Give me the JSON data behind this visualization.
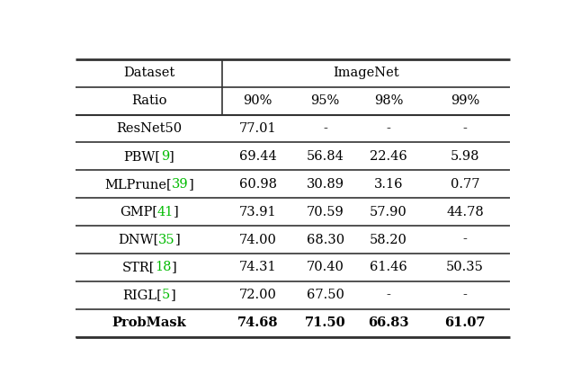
{
  "col_headers": [
    "Dataset",
    "ImageNet"
  ],
  "sub_headers": [
    "Ratio",
    "90%",
    "95%",
    "98%",
    "99%"
  ],
  "rows": [
    {
      "label": "ResNet50",
      "cite": "",
      "cite_num": "",
      "values": [
        "77.01",
        "-",
        "-",
        "-"
      ],
      "bold": false
    },
    {
      "label": "PBW",
      "cite": "[",
      "cite_num": "9",
      "values": [
        "69.44",
        "56.84",
        "22.46",
        "5.98"
      ],
      "bold": false
    },
    {
      "label": "MLPrune",
      "cite": "[",
      "cite_num": "39",
      "values": [
        "60.98",
        "30.89",
        "3.16",
        "0.77"
      ],
      "bold": false
    },
    {
      "label": "GMP",
      "cite": "[",
      "cite_num": "41",
      "values": [
        "73.91",
        "70.59",
        "57.90",
        "44.78"
      ],
      "bold": false
    },
    {
      "label": "DNW",
      "cite": "[",
      "cite_num": "35",
      "values": [
        "74.00",
        "68.30",
        "58.20",
        "-"
      ],
      "bold": false
    },
    {
      "label": "STR",
      "cite": "[",
      "cite_num": "18",
      "values": [
        "74.31",
        "70.40",
        "61.46",
        "50.35"
      ],
      "bold": false
    },
    {
      "label": "RIGL",
      "cite": "[",
      "cite_num": "5",
      "values": [
        "72.00",
        "67.50",
        "-",
        "-"
      ],
      "bold": false
    },
    {
      "label": "ProbMask",
      "cite": "",
      "cite_num": "",
      "values": [
        "74.68",
        "71.50",
        "66.83",
        "61.07"
      ],
      "bold": true
    }
  ],
  "cite_color": "#00bb00",
  "background_color": "#ffffff",
  "font_size": 10.5,
  "header_font_size": 10.5
}
